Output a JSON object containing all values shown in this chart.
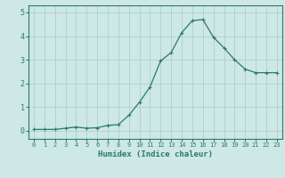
{
  "x": [
    0,
    1,
    2,
    3,
    4,
    5,
    6,
    7,
    8,
    9,
    10,
    11,
    12,
    13,
    14,
    15,
    16,
    17,
    18,
    19,
    20,
    21,
    22,
    23
  ],
  "y": [
    0.05,
    0.05,
    0.05,
    0.1,
    0.15,
    0.1,
    0.12,
    0.22,
    0.25,
    0.65,
    1.2,
    1.85,
    2.95,
    3.3,
    4.15,
    4.65,
    4.7,
    3.95,
    3.5,
    3.0,
    2.6,
    2.45,
    2.45,
    2.45
  ],
  "line_color": "#2a7a6f",
  "marker": "+",
  "bg_color": "#cde8e5",
  "grid_color": "#b0cfcc",
  "xlabel": "Humidex (Indice chaleur)",
  "xlim": [
    -0.5,
    23.5
  ],
  "ylim": [
    -0.35,
    5.3
  ],
  "yticks": [
    0,
    1,
    2,
    3,
    4,
    5
  ],
  "xticks": [
    0,
    1,
    2,
    3,
    4,
    5,
    6,
    7,
    8,
    9,
    10,
    11,
    12,
    13,
    14,
    15,
    16,
    17,
    18,
    19,
    20,
    21,
    22,
    23
  ],
  "tick_color": "#2a7a6f",
  "label_color": "#2a7a6f",
  "spine_color": "#2a7a6f",
  "xtick_fontsize": 5.0,
  "ytick_fontsize": 6.0,
  "xlabel_fontsize": 6.5
}
